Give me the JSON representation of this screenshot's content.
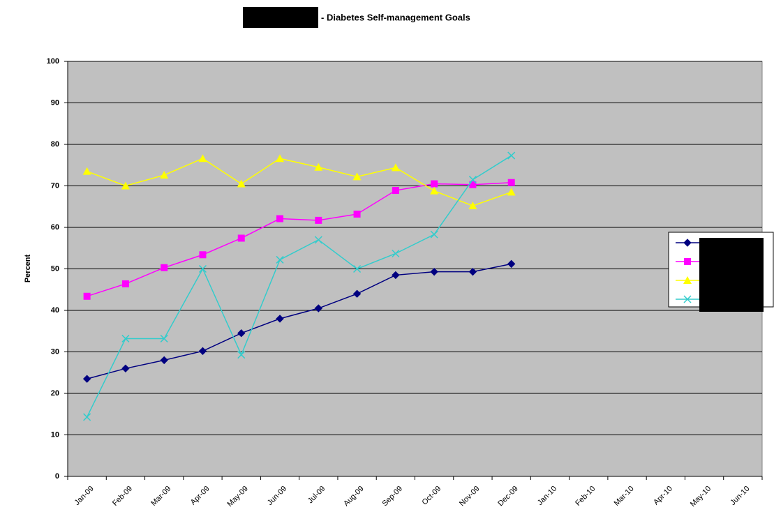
{
  "chart_data": {
    "type": "line",
    "title": "- Diabetes Self-management Goals",
    "y_label": "Percent",
    "categories": [
      "Jan-09",
      "Feb-09",
      "Mar-09",
      "Apr-09",
      "May-09",
      "Jun-09",
      "Jul-09",
      "Aug-09",
      "Sep-09",
      "Oct-09",
      "Nov-09",
      "Dec-09",
      "Jan-10",
      "Feb-10",
      "Mar-10",
      "Apr-10",
      "May-10",
      "Jun-10"
    ],
    "series": [
      {
        "color": "#000080",
        "marker": "diamond",
        "values": [
          23.5,
          26,
          28,
          30.2,
          34.5,
          38,
          40.5,
          44,
          48.5,
          49.3,
          49.3,
          51.2,
          null,
          null,
          null,
          null,
          null,
          null
        ]
      },
      {
        "color": "#ff00ff",
        "marker": "square",
        "values": [
          43.4,
          46.4,
          50.3,
          53.4,
          57.4,
          62.1,
          61.7,
          63.2,
          68.9,
          70.5,
          70.3,
          70.8,
          null,
          null,
          null,
          null,
          null,
          null
        ]
      },
      {
        "color": "#ffff00",
        "marker": "triangle",
        "values": [
          73.5,
          70,
          72.6,
          76.6,
          70.5,
          76.6,
          74.5,
          72.2,
          74.4,
          68.8,
          65.2,
          68.5,
          null,
          null,
          null,
          null,
          null,
          null
        ]
      },
      {
        "color": "#33cccc",
        "marker": "x",
        "values": [
          14.3,
          33.2,
          33.2,
          50,
          29.3,
          52.2,
          57,
          50,
          53.7,
          58.3,
          71.5,
          77.3,
          null,
          null,
          null,
          null,
          null,
          null
        ]
      }
    ],
    "ylim": [
      0,
      100
    ],
    "yticks": [
      0,
      10,
      20,
      30,
      40,
      50,
      60,
      70,
      80,
      90,
      100
    ],
    "grid": true,
    "background": "#c0c0c0"
  }
}
